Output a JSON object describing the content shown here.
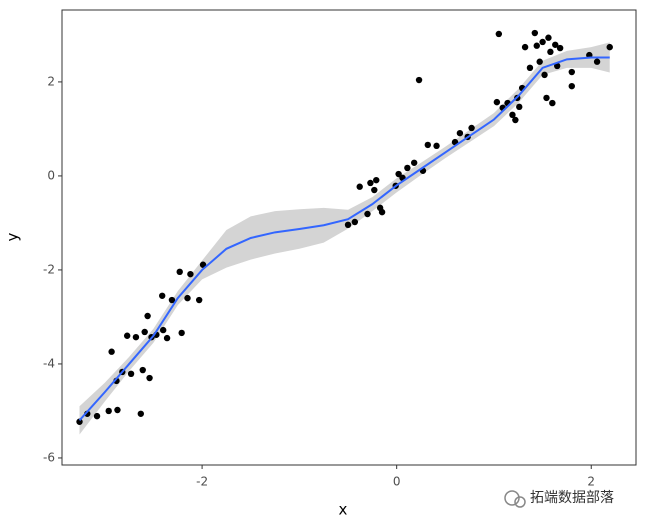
{
  "chart_data": {
    "type": "scatter",
    "x_label": "x",
    "y_label": "y",
    "x": [
      -3.26,
      -3.18,
      -3.08,
      -2.96,
      -2.87,
      -2.63,
      -2.93,
      -2.88,
      -2.82,
      -2.73,
      -2.77,
      -2.68,
      -2.59,
      -2.56,
      -2.52,
      -2.47,
      -2.4,
      -2.41,
      -2.36,
      -2.31,
      -2.23,
      -2.21,
      -2.15,
      -2.12,
      -2.03,
      -1.99,
      -2.54,
      -2.61,
      -0.5,
      -0.43,
      -0.38,
      -0.3,
      -0.27,
      -0.23,
      -0.21,
      -0.17,
      -0.15,
      -0.01,
      0.02,
      0.06,
      0.11,
      0.18,
      0.23,
      0.27,
      0.32,
      0.41,
      0.6,
      0.65,
      0.73,
      0.77,
      1.03,
      1.05,
      1.09,
      1.14,
      1.19,
      1.24,
      1.22,
      1.26,
      1.29,
      1.32,
      1.37,
      1.42,
      1.44,
      1.47,
      1.5,
      1.52,
      1.54,
      1.56,
      1.58,
      1.6,
      1.63,
      1.65,
      1.68,
      1.8,
      1.8,
      1.98,
      2.06,
      2.19
    ],
    "values": [
      -5.23,
      -5.06,
      -5.11,
      -5.0,
      -4.98,
      -5.06,
      -3.74,
      -4.36,
      -4.17,
      -4.21,
      -3.4,
      -3.43,
      -3.32,
      -2.98,
      -3.43,
      -3.38,
      -3.28,
      -2.55,
      -3.45,
      -2.64,
      -2.04,
      -3.34,
      -2.6,
      -2.09,
      -2.64,
      -1.89,
      -4.3,
      -4.13,
      -1.04,
      -0.98,
      -0.23,
      -0.81,
      -0.15,
      -0.3,
      -0.09,
      -0.68,
      -0.77,
      -0.21,
      0.04,
      -0.04,
      0.17,
      0.28,
      2.04,
      0.11,
      0.66,
      0.64,
      0.72,
      0.91,
      0.83,
      1.02,
      1.57,
      3.02,
      1.45,
      1.55,
      1.3,
      1.66,
      1.19,
      1.47,
      1.87,
      2.74,
      2.3,
      3.04,
      2.77,
      2.43,
      2.85,
      2.15,
      1.66,
      2.94,
      2.64,
      1.55,
      2.79,
      2.34,
      2.72,
      2.21,
      1.91,
      2.57,
      2.43,
      2.74
    ],
    "color": "#000000",
    "smooth": {
      "color": "#3366ff",
      "band_color": "#d4d4d4",
      "x": [
        -3.26,
        -3.0,
        -2.75,
        -2.5,
        -2.25,
        -2.0,
        -1.75,
        -1.5,
        -1.25,
        -1.0,
        -0.75,
        -0.5,
        -0.25,
        0,
        0.25,
        0.5,
        0.75,
        1.0,
        1.25,
        1.5,
        1.75,
        2.0,
        2.19
      ],
      "values": [
        -5.2,
        -4.6,
        -4.0,
        -3.4,
        -2.6,
        -2.0,
        -1.55,
        -1.32,
        -1.2,
        -1.13,
        -1.05,
        -0.92,
        -0.6,
        -0.2,
        0.15,
        0.5,
        0.85,
        1.2,
        1.7,
        2.3,
        2.48,
        2.52,
        2.52
      ],
      "lower": [
        -5.5,
        -4.8,
        -4.15,
        -3.55,
        -2.75,
        -2.2,
        -1.95,
        -1.78,
        -1.65,
        -1.55,
        -1.42,
        -1.12,
        -0.75,
        -0.35,
        0.02,
        0.38,
        0.72,
        1.06,
        1.55,
        2.15,
        2.3,
        2.3,
        2.2
      ],
      "upper": [
        -4.9,
        -4.4,
        -3.85,
        -3.25,
        -2.45,
        -1.8,
        -1.15,
        -0.86,
        -0.75,
        -0.71,
        -0.68,
        -0.72,
        -0.45,
        -0.05,
        0.28,
        0.62,
        0.98,
        1.34,
        1.85,
        2.45,
        2.66,
        2.74,
        2.84
      ]
    },
    "xlim": [
      -3.44,
      2.46
    ],
    "ylim": [
      -6.15,
      3.53
    ],
    "xticks": [
      -2,
      0,
      2
    ],
    "yticks": [
      -6,
      -4,
      -2,
      0,
      2
    ]
  },
  "watermark": "拓端数据部落"
}
